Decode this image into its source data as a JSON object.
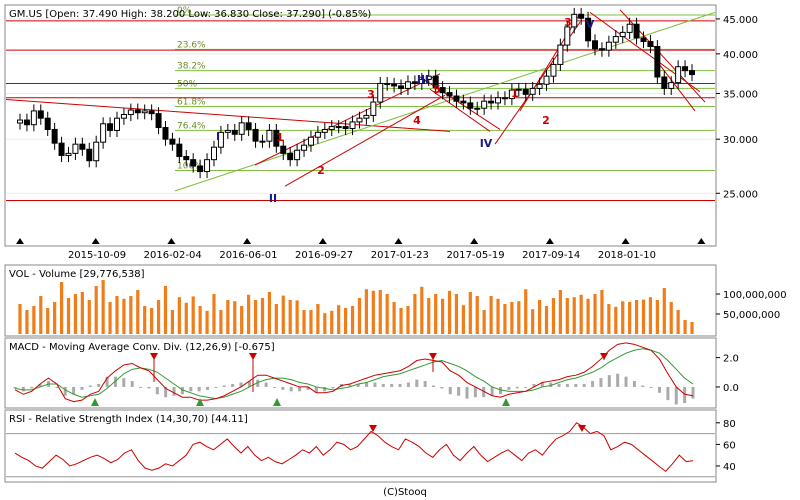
{
  "header": {
    "price_info": "GM.US [Open: 37.490  High: 38.200  Low: 36.830  Close: 37.290]  (-0.85%)",
    "volume_info": "VOL - Volume [29,776,538]",
    "macd_info": "MACD - Moving Average Conv. Div. (12,26,9) [-0.675]",
    "rsi_info": "RSI - Relative Strength Index (14,30,70) [44.11]",
    "footer": "(C)Stooq"
  },
  "colors": {
    "candle": "#000000",
    "volume": "#f07d1a",
    "fib": "#7fbf3f",
    "trend_red": "#cc0000",
    "macd_line": "#cc0000",
    "signal_line": "#339933",
    "rsi_line": "#cc0000",
    "hist": "#aaaaaa",
    "wave_blue": "#1a1a8c"
  },
  "chart_data": [
    {
      "type": "candlestick",
      "title": "GM.US",
      "x_tick_labels": [
        "2015-10-09",
        "2016-02-04",
        "2016-06-01",
        "2016-09-27",
        "2017-01-23",
        "2017-05-19",
        "2017-09-14",
        "2018-01-10"
      ],
      "y_tick_labels": [
        "25.000",
        "30.000",
        "35.000",
        "40.000",
        "45.000"
      ],
      "y_ticks": [
        25,
        30,
        35,
        40,
        45
      ],
      "ylim": [
        21,
        47
      ],
      "scale": "log",
      "fib_levels": [
        {
          "label": "0%",
          "value": 45.6
        },
        {
          "label": "23.6%",
          "value": 40.6
        },
        {
          "label": "38.2%",
          "value": 37.8
        },
        {
          "label": "50%",
          "value": 35.6
        },
        {
          "label": "61.8%",
          "value": 33.5
        },
        {
          "label": "76.4%",
          "value": 30.9
        },
        {
          "label": "100%",
          "value": 27.0
        }
      ],
      "red_hlines": [
        24.4,
        34.5,
        36.2,
        40.5,
        44.7
      ],
      "wave_labels_red": [
        "1",
        "2",
        "3",
        "4",
        "5",
        "1",
        "2",
        "3"
      ],
      "wave_labels_blue": [
        "I",
        "II",
        "III",
        "IV",
        "V"
      ],
      "close": [
        32.0,
        31.5,
        33.0,
        32.2,
        31.0,
        29.6,
        28.4,
        28.6,
        29.5,
        29.0,
        27.9,
        29.7,
        31.6,
        30.9,
        32.2,
        32.6,
        33.1,
        32.8,
        33.0,
        32.7,
        31.2,
        30.0,
        29.5,
        28.3,
        28.0,
        27.4,
        26.9,
        28.0,
        29.2,
        30.7,
        30.9,
        30.5,
        31.7,
        31.0,
        29.8,
        29.8,
        30.9,
        29.3,
        28.6,
        28.0,
        28.9,
        29.4,
        30.2,
        30.7,
        31.0,
        31.3,
        31.3,
        31.1,
        31.8,
        32.2,
        32.5,
        34.0,
        36.2,
        36.1,
        35.9,
        35.6,
        36.4,
        36.2,
        36.7,
        37.1,
        35.7,
        35.1,
        34.7,
        34.1,
        33.9,
        33.3,
        33.3,
        34.1,
        33.9,
        34.5,
        34.4,
        35.4,
        35.5,
        34.9,
        35.6,
        36.1,
        37.1,
        38.6,
        41.2,
        43.8,
        45.7,
        45.1,
        41.8,
        40.7,
        40.5,
        41.6,
        42.4,
        43.0,
        44.2,
        42.2,
        41.7,
        41.0,
        37.0,
        35.6,
        36.3,
        38.3,
        37.8,
        37.3
      ]
    },
    {
      "type": "bar",
      "title": "VOL - Volume",
      "y_tick_labels": [
        "50,000,000",
        "100,000,000"
      ],
      "y_ticks": [
        50,
        100
      ],
      "ylim": [
        0,
        165
      ],
      "units": "millions",
      "values": [
        75,
        60,
        70,
        95,
        65,
        80,
        130,
        90,
        100,
        105,
        85,
        120,
        135,
        80,
        95,
        88,
        95,
        110,
        70,
        65,
        85,
        120,
        60,
        92,
        78,
        94,
        70,
        58,
        100,
        60,
        85,
        82,
        70,
        98,
        85,
        90,
        105,
        75,
        96,
        85,
        84,
        60,
        60,
        75,
        52,
        58,
        72,
        65,
        70,
        90,
        112,
        108,
        110,
        100,
        80,
        65,
        70,
        100,
        118,
        90,
        100,
        88,
        108,
        100,
        72,
        105,
        95,
        60,
        95,
        88,
        75,
        80,
        82,
        112,
        62,
        85,
        70,
        90,
        110,
        90,
        92,
        98,
        88,
        100,
        110,
        75,
        68,
        82,
        80,
        85,
        86,
        92,
        85,
        115,
        80,
        60,
        35,
        30
      ]
    },
    {
      "type": "line",
      "title": "MACD - Moving Average Conv. Div.",
      "y_tick_labels": [
        "0.0",
        "2.0"
      ],
      "y_ticks": [
        0,
        2
      ],
      "ylim": [
        -1.3,
        3.2
      ],
      "series": [
        {
          "name": "MACD",
          "values": [
            -0.2,
            -0.5,
            -0.3,
            0.2,
            0.6,
            0.2,
            -0.8,
            -1.0,
            -0.9,
            -0.5,
            -0.3,
            0.6,
            1.1,
            1.5,
            1.6,
            1.3,
            1.1,
            0.5,
            -0.1,
            -0.4,
            -0.7,
            -0.7,
            -0.9,
            -0.9,
            -0.8,
            -0.6,
            -0.3,
            0.0,
            0.4,
            0.8,
            0.8,
            0.6,
            0.4,
            0.2,
            0.0,
            0.0,
            -0.4,
            -0.4,
            -0.3,
            0.1,
            0.2,
            0.4,
            0.6,
            0.8,
            0.9,
            1.0,
            1.1,
            1.4,
            1.8,
            1.9,
            1.8,
            1.7,
            1.1,
            0.8,
            0.3,
            0.0,
            -0.3,
            -0.6,
            -0.7,
            -0.5,
            -0.4,
            -0.3,
            0.0,
            0.3,
            0.4,
            0.5,
            0.7,
            0.8,
            1.0,
            1.4,
            1.9,
            2.5,
            2.9,
            3.0,
            2.9,
            2.7,
            2.5,
            1.9,
            0.9,
            0.0,
            -0.5,
            -0.6
          ]
        },
        {
          "name": "Signal",
          "values": [
            -0.1,
            -0.2,
            -0.2,
            0.0,
            0.2,
            0.2,
            -0.2,
            -0.5,
            -0.7,
            -0.6,
            -0.5,
            -0.1,
            0.4,
            0.9,
            1.2,
            1.3,
            1.2,
            1.0,
            0.6,
            0.2,
            -0.2,
            -0.4,
            -0.6,
            -0.7,
            -0.8,
            -0.7,
            -0.5,
            -0.3,
            0.0,
            0.3,
            0.5,
            0.6,
            0.6,
            0.5,
            0.3,
            0.2,
            0.0,
            -0.1,
            -0.2,
            -0.1,
            0.0,
            0.2,
            0.3,
            0.5,
            0.7,
            0.8,
            0.9,
            1.1,
            1.3,
            1.5,
            1.7,
            1.8,
            1.6,
            1.4,
            1.1,
            0.7,
            0.4,
            0.0,
            -0.2,
            -0.3,
            -0.3,
            -0.3,
            -0.2,
            0.0,
            0.1,
            0.3,
            0.5,
            0.6,
            0.8,
            1.0,
            1.3,
            1.7,
            2.0,
            2.3,
            2.5,
            2.6,
            2.5,
            2.3,
            1.8,
            1.2,
            0.6,
            0.2
          ]
        }
      ],
      "up_arrow_labels": 4,
      "down_arrow_labels": 4
    },
    {
      "type": "line",
      "title": "RSI - Relative Strength Index",
      "y_tick_labels": [
        "40",
        "60",
        "80"
      ],
      "y_ticks": [
        40,
        60,
        80
      ],
      "ylim": [
        27,
        90
      ],
      "ref_lines": [
        30,
        70
      ],
      "series": [
        {
          "name": "RSI",
          "values": [
            52,
            48,
            45,
            40,
            38,
            44,
            50,
            46,
            40,
            42,
            45,
            48,
            50,
            47,
            43,
            46,
            52,
            55,
            45,
            38,
            36,
            38,
            42,
            40,
            45,
            50,
            60,
            62,
            58,
            55,
            60,
            65,
            58,
            52,
            58,
            50,
            45,
            48,
            44,
            42,
            46,
            50,
            55,
            52,
            58,
            50,
            55,
            62,
            60,
            55,
            58,
            65,
            72,
            68,
            62,
            58,
            55,
            65,
            62,
            58,
            52,
            48,
            55,
            60,
            50,
            45,
            52,
            58,
            50,
            44,
            48,
            52,
            55,
            50,
            45,
            52,
            55,
            50,
            58,
            65,
            68,
            72,
            80,
            76,
            70,
            72,
            68,
            55,
            58,
            62,
            60,
            55,
            50,
            45,
            40,
            35,
            42,
            50,
            44,
            45
          ]
        }
      ]
    }
  ]
}
